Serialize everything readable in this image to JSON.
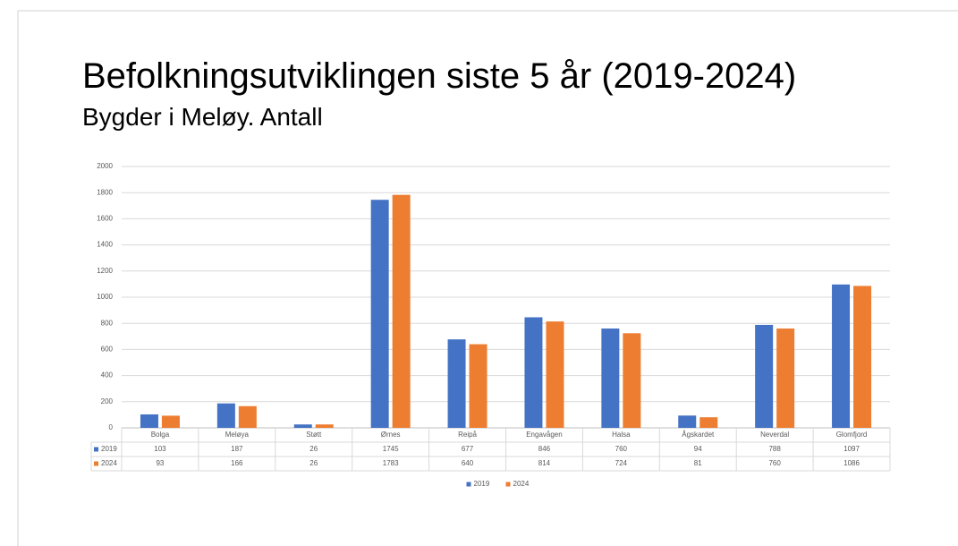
{
  "chart_data": {
    "type": "bar",
    "title": "Befolkningsutviklingen siste 5 år (2019-2024)",
    "subtitle": "Bygder i Meløy. Antall",
    "categories": [
      "Bolga",
      "Meløya",
      "Støtt",
      "Ørnes",
      "Reipå",
      "Engavågen",
      "Halsa",
      "Ågskardet",
      "Neverdal",
      "Glomfjord"
    ],
    "series": [
      {
        "name": "2019",
        "color": "#4472c4",
        "values": [
          103,
          187,
          26,
          1745,
          677,
          846,
          760,
          94,
          788,
          1097
        ]
      },
      {
        "name": "2024",
        "color": "#ed7d31",
        "values": [
          93,
          166,
          26,
          1783,
          640,
          814,
          724,
          81,
          760,
          1086
        ]
      }
    ],
    "ylim": [
      0,
      2000
    ],
    "yticks": [
      0,
      200,
      400,
      600,
      800,
      1000,
      1200,
      1400,
      1600,
      1800,
      2000
    ],
    "grid": true,
    "legend": "bottom"
  }
}
